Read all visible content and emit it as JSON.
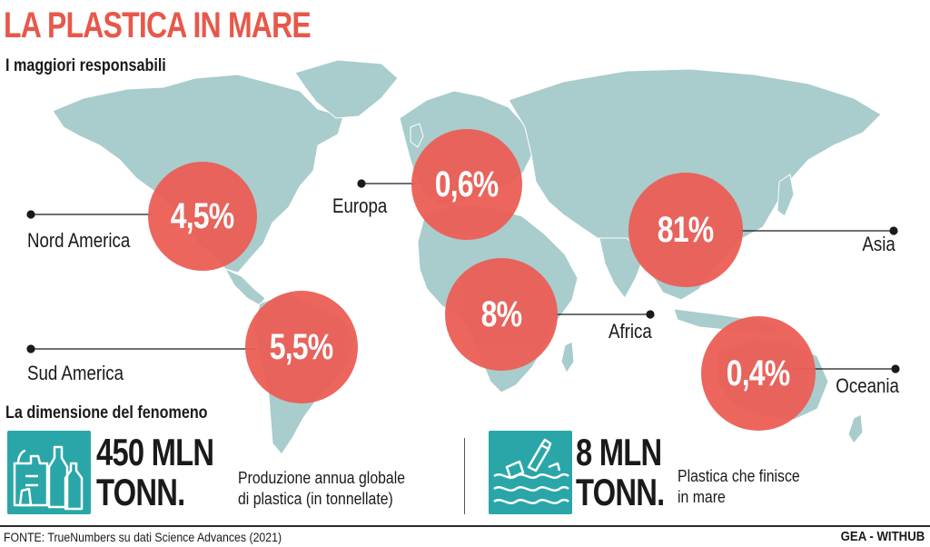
{
  "header": {
    "title": "LA PLASTICA IN MARE",
    "subtitle": "I maggiori responsabili"
  },
  "colors": {
    "accent": "#e8584a",
    "bubble": "#ec5e55",
    "land": "#a9cccc",
    "icon_bg": "#2aa6a8"
  },
  "regions": [
    {
      "name": "Nord America",
      "share": "4,5%"
    },
    {
      "name": "Europa",
      "share": "0,6%"
    },
    {
      "name": "Asia",
      "share": "81%"
    },
    {
      "name": "Sud America",
      "share": "5,5%"
    },
    {
      "name": "Africa",
      "share": "8%"
    },
    {
      "name": "Oceania",
      "share": "0,4%"
    }
  ],
  "chart_data": {
    "type": "map",
    "values": [
      {
        "region": "Nord America",
        "percent": 4.5
      },
      {
        "region": "Europa",
        "percent": 0.6
      },
      {
        "region": "Asia",
        "percent": 81
      },
      {
        "region": "Sud America",
        "percent": 5.5
      },
      {
        "region": "Africa",
        "percent": 8
      },
      {
        "region": "Oceania",
        "percent": 0.4
      }
    ]
  },
  "stats": {
    "section_title": "La dimensione del fenomeno",
    "production": {
      "icon": "plastic-bottles-bag-icon",
      "value_line1": "450 MLN",
      "value_line2": "TONN.",
      "desc_line1": "Produzione annua globale",
      "desc_line2": "di plastica (in tonnellate)"
    },
    "sea": {
      "icon": "plastic-in-sea-icon",
      "value_line1": "8 MLN",
      "value_line2": "TONN.",
      "desc_line1": "Plastica che finisce",
      "desc_line2": "in mare"
    }
  },
  "footer": {
    "source": "FONTE: TrueNumbers su dati Science Advances (2021)",
    "credit": "GEA - WITHUB"
  }
}
